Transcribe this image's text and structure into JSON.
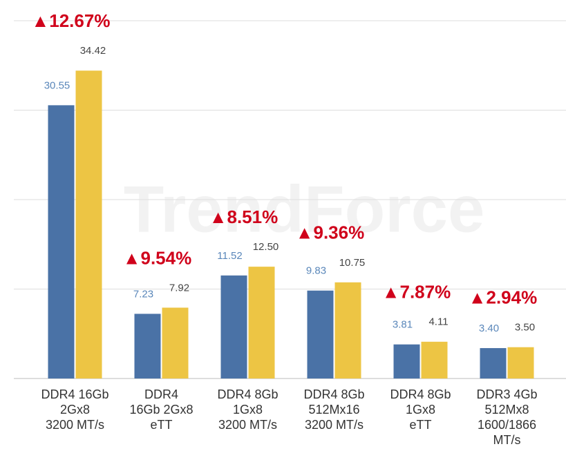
{
  "chart_data": {
    "type": "bar",
    "watermark": "TrendForce",
    "categories": [
      [
        "DDR4 16Gb",
        "2Gx8",
        "3200 MT/s"
      ],
      [
        "DDR4",
        "16Gb 2Gx8",
        "eTT"
      ],
      [
        "DDR4 8Gb",
        "1Gx8",
        "3200 MT/s"
      ],
      [
        "DDR4 8Gb",
        "512Mx16",
        "3200 MT/s"
      ],
      [
        "DDR4 8Gb",
        "1Gx8",
        "eTT"
      ],
      [
        "DDR3 4Gb",
        "512Mx8",
        "1600/1866",
        "MT/s"
      ]
    ],
    "series": [
      {
        "color": "#4a72a6",
        "label_color": "#5a87ba",
        "values": [
          30.55,
          7.23,
          11.52,
          9.83,
          3.81,
          3.4
        ],
        "value_labels": [
          "30.55",
          "7.23",
          "11.52",
          "9.83",
          "3.81",
          "3.40"
        ]
      },
      {
        "color": "#edc544",
        "label_color": "#444444",
        "values": [
          34.42,
          7.92,
          12.5,
          10.75,
          4.11,
          3.5
        ],
        "value_labels": [
          "34.42",
          "7.92",
          "12.50",
          "10.75",
          "4.11",
          "3.50"
        ]
      }
    ],
    "annotations": [
      "▲12.67%",
      "▲9.54%",
      "▲8.51%",
      "▲9.36%",
      "▲7.87%",
      "▲2.94%"
    ],
    "annotation_color": "#d0021b",
    "ylim": [
      0,
      40
    ],
    "yticks": [
      0,
      10,
      20,
      30,
      40
    ],
    "grid": true
  }
}
